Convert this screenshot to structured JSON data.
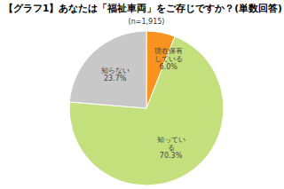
{
  "chart_data": {
    "type": "pie",
    "title": "【グラフ1】あなたは「福祉車両」をご存じですか？(単数回答)",
    "subtitle": "(n=1,915)",
    "categories": [
      "現在保有している",
      "知っている",
      "知らない"
    ],
    "values": [
      6.0,
      70.3,
      23.7
    ],
    "value_labels": [
      "6.0%",
      "70.3%",
      "23.7%"
    ],
    "colors": [
      "#f7931e",
      "#c4e07c",
      "#c8c8c8"
    ],
    "data_labels": true
  }
}
